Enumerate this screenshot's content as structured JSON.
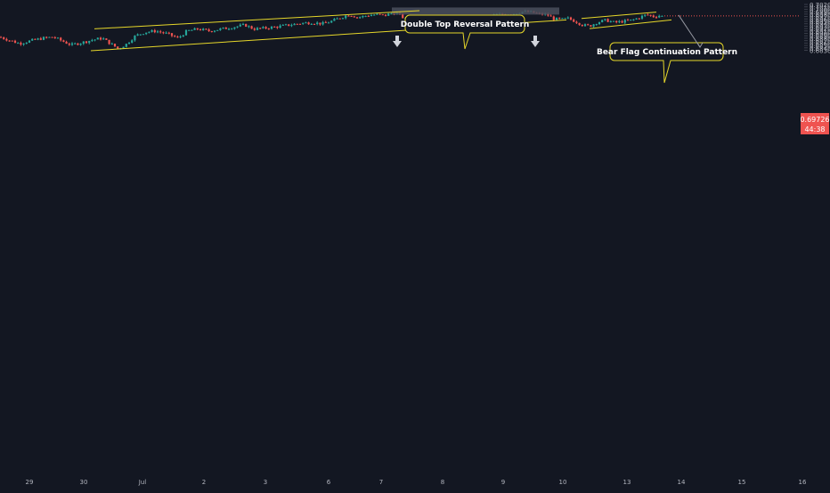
{
  "colors": {
    "background": "#131722",
    "bull": "#26a69a",
    "bear": "#ef5350",
    "trendline": "#e6d72a",
    "axis_text": "#b2b5be",
    "price_badge": "#ef5350",
    "resistance_zone": "#4a4f5c",
    "arrow": "#d1d4dc"
  },
  "price_label": {
    "price": "0.69726",
    "countdown": "44:38"
  },
  "annotations": {
    "double_top": "Double Top Reversal Pattern",
    "bear_flag": "Bear Flag Continuation Pattern"
  },
  "chart_data": {
    "type": "candlestick",
    "y_axis": {
      "range": [
        0.6825,
        0.702
      ],
      "ticks": [
        0.702,
        0.701,
        0.7,
        0.699,
        0.698,
        0.697,
        0.696,
        0.695,
        0.694,
        0.693,
        0.692,
        0.691,
        0.69,
        0.689,
        0.688,
        0.687,
        0.686,
        0.685,
        0.684,
        0.683
      ],
      "tick_labels": [
        "0.70200",
        "0.70100",
        "0.70000",
        "0.69900",
        "0.69800",
        "0.69700",
        "0.69600",
        "0.69500",
        "0.69400",
        "0.69300",
        "0.69200",
        "0.69100",
        "0.69000",
        "0.68900",
        "0.68800",
        "0.68700",
        "0.68600",
        "0.68500",
        "0.68400",
        "0.68300"
      ]
    },
    "x_axis": {
      "labels": [
        "29",
        "30",
        "Jul",
        "2",
        "3",
        "6",
        "7",
        "8",
        "9",
        "10",
        "13",
        "14",
        "15",
        "16"
      ]
    },
    "current_price": 0.69726,
    "price_path": [
      [
        0,
        0.6885
      ],
      [
        10,
        0.6872
      ],
      [
        22,
        0.6858
      ],
      [
        35,
        0.687
      ],
      [
        48,
        0.688
      ],
      [
        60,
        0.6885
      ],
      [
        70,
        0.6868
      ],
      [
        80,
        0.6852
      ],
      [
        92,
        0.6862
      ],
      [
        105,
        0.6874
      ],
      [
        115,
        0.688
      ],
      [
        123,
        0.686
      ],
      [
        133,
        0.6836
      ],
      [
        142,
        0.6856
      ],
      [
        152,
        0.689
      ],
      [
        163,
        0.6905
      ],
      [
        175,
        0.691
      ],
      [
        188,
        0.6898
      ],
      [
        200,
        0.688
      ],
      [
        210,
        0.691
      ],
      [
        222,
        0.6918
      ],
      [
        235,
        0.691
      ],
      [
        248,
        0.6918
      ],
      [
        262,
        0.6926
      ],
      [
        275,
        0.6935
      ],
      [
        285,
        0.6918
      ],
      [
        298,
        0.6922
      ],
      [
        312,
        0.6928
      ],
      [
        325,
        0.6935
      ],
      [
        338,
        0.6942
      ],
      [
        350,
        0.6945
      ],
      [
        362,
        0.694
      ],
      [
        372,
        0.695
      ],
      [
        382,
        0.6965
      ],
      [
        392,
        0.6978
      ],
      [
        402,
        0.6966
      ],
      [
        412,
        0.6974
      ],
      [
        422,
        0.6978
      ],
      [
        432,
        0.6974
      ],
      [
        438,
        0.6982
      ],
      [
        446,
        0.6985
      ],
      [
        454,
        0.6962
      ],
      [
        462,
        0.6948
      ],
      [
        470,
        0.6928
      ],
      [
        480,
        0.6938
      ],
      [
        490,
        0.6958
      ],
      [
        500,
        0.6945
      ],
      [
        510,
        0.6938
      ],
      [
        520,
        0.6942
      ],
      [
        530,
        0.6935
      ],
      [
        540,
        0.6942
      ],
      [
        548,
        0.6968
      ],
      [
        556,
        0.6978
      ],
      [
        566,
        0.698
      ],
      [
        576,
        0.6982
      ],
      [
        586,
        0.699
      ],
      [
        596,
        0.6988
      ],
      [
        606,
        0.698
      ],
      [
        614,
        0.6978
      ],
      [
        622,
        0.696
      ],
      [
        630,
        0.6958
      ],
      [
        638,
        0.6962
      ],
      [
        646,
        0.695
      ],
      [
        654,
        0.6935
      ],
      [
        662,
        0.693
      ],
      [
        670,
        0.6945
      ],
      [
        680,
        0.6955
      ],
      [
        690,
        0.6945
      ],
      [
        700,
        0.695
      ],
      [
        710,
        0.6955
      ],
      [
        718,
        0.6966
      ],
      [
        726,
        0.6978
      ],
      [
        734,
        0.697
      ],
      [
        742,
        0.6974
      ],
      [
        746,
        0.6972
      ]
    ],
    "trendlines": [
      {
        "role": "channel upper",
        "from": [
          106,
          0.6919
        ],
        "to": [
          471,
          0.6994
        ]
      },
      {
        "role": "channel lower",
        "from": [
          102,
          0.6828
        ],
        "to": [
          636,
          0.6956
        ]
      },
      {
        "role": "flag upper",
        "from": [
          653,
          0.6962
        ],
        "to": [
          737,
          0.6988
        ]
      },
      {
        "role": "flag lower",
        "from": [
          662,
          0.692
        ],
        "to": [
          754,
          0.6956
        ]
      }
    ],
    "resistance_zone": {
      "price_high": 0.7,
      "price_low": 0.6997,
      "from_x": 440,
      "to_x": 628
    },
    "projection_arrow": {
      "from": [
        762,
        0.6976
      ],
      "to": [
        786,
        0.6843
      ]
    }
  }
}
